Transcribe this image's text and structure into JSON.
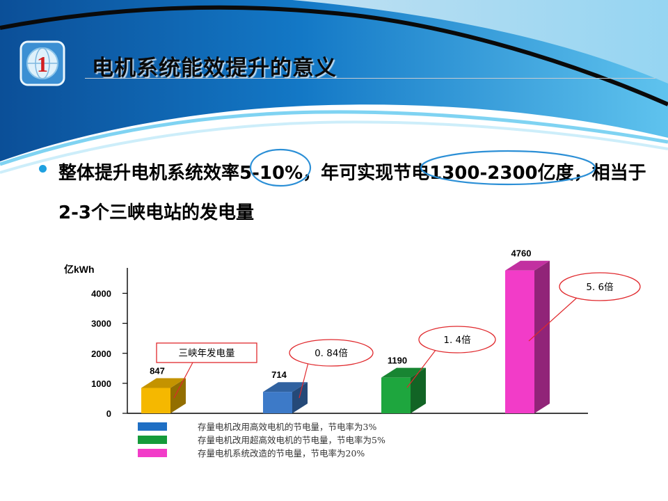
{
  "slide": {
    "badge_number": "1",
    "title": "电机系统能效提升的意义",
    "bullet_text": "整体提升电机系统效率5-10%，年可实现节电1300-2300亿度，相当于2-3个三峡电站的发电量"
  },
  "colors": {
    "banner_dark": "#0e5fa8",
    "banner_light": "#9fd8f2",
    "bullet": "#1ea0e0",
    "highlight_circle": "#2b8fd6",
    "callout_border": "#e0282c"
  },
  "chart_data": {
    "type": "bar",
    "ylabel": "亿kWh",
    "ylim": [
      0,
      4800
    ],
    "yticks": [
      0,
      1000,
      2000,
      3000,
      4000
    ],
    "ytick_labels": [
      "0",
      "1000",
      "2000",
      "3000",
      "4000"
    ],
    "grid": false,
    "bars": [
      {
        "value": 847,
        "label": "847",
        "color": "#f5b800"
      },
      {
        "value": 714,
        "label": "714",
        "color": "#3d7ac8"
      },
      {
        "value": 1190,
        "label": "1190",
        "color": "#1ea63e"
      },
      {
        "value": 4760,
        "label": "4760",
        "color": "#f23cc8"
      }
    ],
    "callouts": [
      {
        "text": "三峡年发电量",
        "shape": "rect",
        "target_bar": 0
      },
      {
        "text": "0. 84倍",
        "shape": "ellipse",
        "target_bar": 1
      },
      {
        "text": "1. 4倍",
        "shape": "ellipse",
        "target_bar": 2
      },
      {
        "text": "5. 6倍",
        "shape": "ellipse",
        "target_bar": 3
      }
    ],
    "legend": [
      {
        "label": "存量电机改用高效电机的节电量，节电率为3%",
        "color": "#1f6fc4"
      },
      {
        "label": "存量电机改用超高效电机的节电量，节电率为5%",
        "color": "#159a3a"
      },
      {
        "label": "存量电机系统改造的节电量，节电率为20%",
        "color": "#f23cc8"
      }
    ],
    "legend_placement": "bottom"
  }
}
